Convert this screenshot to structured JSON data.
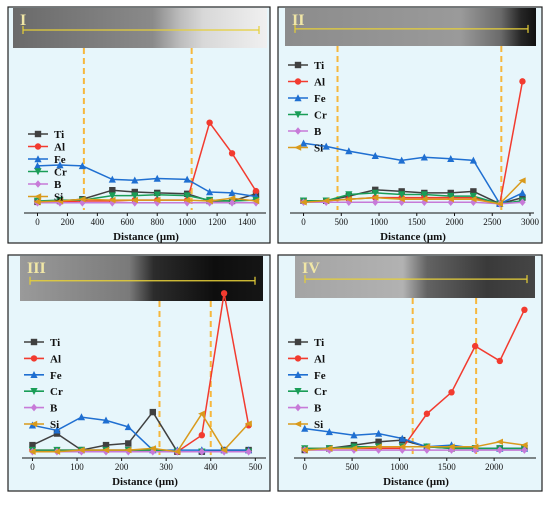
{
  "colors": {
    "panel_bg": "#e7f6fb",
    "highlight": "#f6b73c",
    "Ti": "#404040",
    "Al": "#f23b2f",
    "Fe": "#1f6fd1",
    "Cr": "#1a9d57",
    "B": "#c77ad8",
    "Si": "#d99a1c",
    "scan_line": "#e6cf38"
  },
  "chart_data": [
    {
      "type": "line",
      "panel_label": "I",
      "xlabel": "Distance (μm)",
      "xlim": [
        -50,
        1500
      ],
      "ylim": [
        0,
        1
      ],
      "xticks": [
        0,
        200,
        400,
        600,
        800,
        1000,
        1200,
        1400
      ],
      "boundaries": [
        310,
        1030
      ],
      "series": [
        {
          "name": "Ti",
          "x": [
            0,
            150,
            300,
            500,
            650,
            800,
            1000,
            1150,
            1300,
            1460
          ],
          "y": [
            0.09,
            0.1,
            0.12,
            0.22,
            0.2,
            0.19,
            0.18,
            0.1,
            0.1,
            0.18
          ]
        },
        {
          "name": "Al",
          "x": [
            0,
            150,
            300,
            500,
            650,
            800,
            1000,
            1150,
            1300,
            1460
          ],
          "y": [
            0.09,
            0.09,
            0.1,
            0.1,
            0.11,
            0.11,
            0.11,
            0.97,
            0.63,
            0.21
          ]
        },
        {
          "name": "Fe",
          "x": [
            0,
            150,
            300,
            500,
            650,
            800,
            1000,
            1150,
            1300,
            1460
          ],
          "y": [
            0.49,
            0.5,
            0.49,
            0.34,
            0.33,
            0.35,
            0.34,
            0.2,
            0.19,
            0.15
          ]
        },
        {
          "name": "Cr",
          "x": [
            0,
            150,
            300,
            500,
            650,
            800,
            1000,
            1150,
            1300,
            1460
          ],
          "y": [
            0.1,
            0.11,
            0.11,
            0.16,
            0.16,
            0.17,
            0.16,
            0.11,
            0.1,
            0.11
          ]
        },
        {
          "name": "B",
          "x": [
            0,
            150,
            300,
            500,
            650,
            800,
            1000,
            1150,
            1300,
            1460
          ],
          "y": [
            0.08,
            0.08,
            0.08,
            0.08,
            0.08,
            0.08,
            0.08,
            0.08,
            0.08,
            0.08
          ]
        },
        {
          "name": "Si",
          "x": [
            0,
            150,
            300,
            500,
            650,
            800,
            1000,
            1150,
            1300,
            1460
          ],
          "y": [
            0.09,
            0.1,
            0.12,
            0.11,
            0.11,
            0.11,
            0.11,
            0.1,
            0.13,
            0.1
          ]
        }
      ]
    },
    {
      "type": "line",
      "panel_label": "II",
      "xlabel": "Distance (μm)",
      "xlim": [
        -100,
        3000
      ],
      "ylim": [
        0,
        1
      ],
      "xticks": [
        0,
        500,
        1000,
        1500,
        2000,
        2500,
        3000
      ],
      "boundaries": [
        450,
        2620
      ],
      "series": [
        {
          "name": "Ti",
          "x": [
            0,
            300,
            600,
            950,
            1300,
            1600,
            1950,
            2250,
            2600,
            2900
          ],
          "y": [
            0.06,
            0.06,
            0.09,
            0.13,
            0.12,
            0.11,
            0.11,
            0.12,
            0.04,
            0.08
          ]
        },
        {
          "name": "Al",
          "x": [
            0,
            300,
            600,
            950,
            1300,
            1600,
            1950,
            2250,
            2600,
            2900
          ],
          "y": [
            0.06,
            0.06,
            0.07,
            0.08,
            0.08,
            0.08,
            0.08,
            0.08,
            0.04,
            0.83
          ]
        },
        {
          "name": "Fe",
          "x": [
            0,
            300,
            600,
            950,
            1300,
            1600,
            1950,
            2250,
            2600,
            2900
          ],
          "y": [
            0.43,
            0.41,
            0.38,
            0.35,
            0.32,
            0.34,
            0.33,
            0.32,
            0.04,
            0.11
          ]
        },
        {
          "name": "Cr",
          "x": [
            0,
            300,
            600,
            950,
            1300,
            1600,
            1950,
            2250,
            2600,
            2900
          ],
          "y": [
            0.06,
            0.06,
            0.1,
            0.11,
            0.1,
            0.1,
            0.09,
            0.09,
            0.04,
            0.06
          ]
        },
        {
          "name": "B",
          "x": [
            0,
            300,
            600,
            950,
            1300,
            1600,
            1950,
            2250,
            2600,
            2900
          ],
          "y": [
            0.05,
            0.05,
            0.05,
            0.05,
            0.05,
            0.05,
            0.05,
            0.05,
            0.04,
            0.05
          ]
        },
        {
          "name": "Si",
          "x": [
            0,
            300,
            600,
            950,
            1300,
            1600,
            1950,
            2250,
            2600,
            2900
          ],
          "y": [
            0.05,
            0.06,
            0.07,
            0.08,
            0.07,
            0.07,
            0.07,
            0.07,
            0.04,
            0.19
          ]
        }
      ]
    },
    {
      "type": "line",
      "panel_label": "III",
      "xlabel": "Distance (μm)",
      "xlim": [
        -10,
        515
      ],
      "ylim": [
        0,
        1
      ],
      "xticks": [
        0,
        100,
        200,
        300,
        400,
        500
      ],
      "boundaries": [
        285,
        400
      ],
      "series": [
        {
          "name": "Ti",
          "x": [
            0,
            55,
            110,
            165,
            215,
            270,
            325,
            380,
            430,
            485
          ],
          "y": [
            0.06,
            0.13,
            0.03,
            0.06,
            0.07,
            0.26,
            0.02,
            0.02,
            0.03,
            0.03
          ]
        },
        {
          "name": "Al",
          "x": [
            0,
            55,
            110,
            165,
            215,
            270,
            325,
            380,
            430,
            485
          ],
          "y": [
            0.03,
            0.03,
            0.03,
            0.03,
            0.03,
            0.03,
            0.02,
            0.12,
            0.98,
            0.18
          ]
        },
        {
          "name": "Fe",
          "x": [
            0,
            55,
            110,
            165,
            215,
            270,
            325,
            380,
            430,
            485
          ],
          "y": [
            0.18,
            0.15,
            0.23,
            0.21,
            0.17,
            0.03,
            0.03,
            0.03,
            0.03,
            0.03
          ]
        },
        {
          "name": "Cr",
          "x": [
            0,
            55,
            110,
            165,
            215,
            270,
            325,
            380,
            430,
            485
          ],
          "y": [
            0.03,
            0.03,
            0.03,
            0.03,
            0.03,
            0.03,
            0.02,
            0.02,
            0.02,
            0.02
          ]
        },
        {
          "name": "B",
          "x": [
            0,
            55,
            110,
            165,
            215,
            270,
            325,
            380,
            430,
            485
          ],
          "y": [
            0.02,
            0.02,
            0.02,
            0.02,
            0.02,
            0.02,
            0.02,
            0.02,
            0.02,
            0.02
          ]
        },
        {
          "name": "Si",
          "x": [
            0,
            55,
            110,
            165,
            215,
            270,
            325,
            380,
            430,
            485
          ],
          "y": [
            0.02,
            0.02,
            0.03,
            0.03,
            0.03,
            0.04,
            0.02,
            0.25,
            0.03,
            0.19
          ]
        }
      ]
    },
    {
      "type": "line",
      "panel_label": "IV",
      "xlabel": "Distance (μm)",
      "xlim": [
        -50,
        2400
      ],
      "ylim": [
        0,
        1
      ],
      "xticks": [
        0,
        500,
        1000,
        1500,
        2000
      ],
      "boundaries": [
        1140,
        1810
      ],
      "series": [
        {
          "name": "Ti",
          "x": [
            0,
            260,
            520,
            780,
            1030,
            1290,
            1550,
            1800,
            2060,
            2320
          ],
          "y": [
            0.03,
            0.04,
            0.06,
            0.08,
            0.09,
            0.05,
            0.04,
            0.04,
            0.04,
            0.04
          ]
        },
        {
          "name": "Al",
          "x": [
            0,
            260,
            520,
            780,
            1030,
            1290,
            1550,
            1800,
            2060,
            2320
          ],
          "y": [
            0.04,
            0.04,
            0.04,
            0.04,
            0.04,
            0.25,
            0.38,
            0.66,
            0.57,
            0.88
          ]
        },
        {
          "name": "Fe",
          "x": [
            0,
            260,
            520,
            780,
            1030,
            1290,
            1550,
            1800,
            2060,
            2320
          ],
          "y": [
            0.16,
            0.14,
            0.12,
            0.13,
            0.1,
            0.05,
            0.06,
            0.04,
            0.04,
            0.04
          ]
        },
        {
          "name": "Cr",
          "x": [
            0,
            260,
            520,
            780,
            1030,
            1290,
            1550,
            1800,
            2060,
            2320
          ],
          "y": [
            0.04,
            0.04,
            0.05,
            0.05,
            0.05,
            0.05,
            0.04,
            0.04,
            0.04,
            0.04
          ]
        },
        {
          "name": "B",
          "x": [
            0,
            260,
            520,
            780,
            1030,
            1290,
            1550,
            1800,
            2060,
            2320
          ],
          "y": [
            0.03,
            0.03,
            0.03,
            0.03,
            0.03,
            0.03,
            0.03,
            0.03,
            0.03,
            0.03
          ]
        },
        {
          "name": "Si",
          "x": [
            0,
            260,
            520,
            780,
            1030,
            1290,
            1550,
            1800,
            2060,
            2320
          ],
          "y": [
            0.03,
            0.04,
            0.04,
            0.05,
            0.05,
            0.05,
            0.05,
            0.05,
            0.08,
            0.06
          ]
        }
      ]
    }
  ]
}
